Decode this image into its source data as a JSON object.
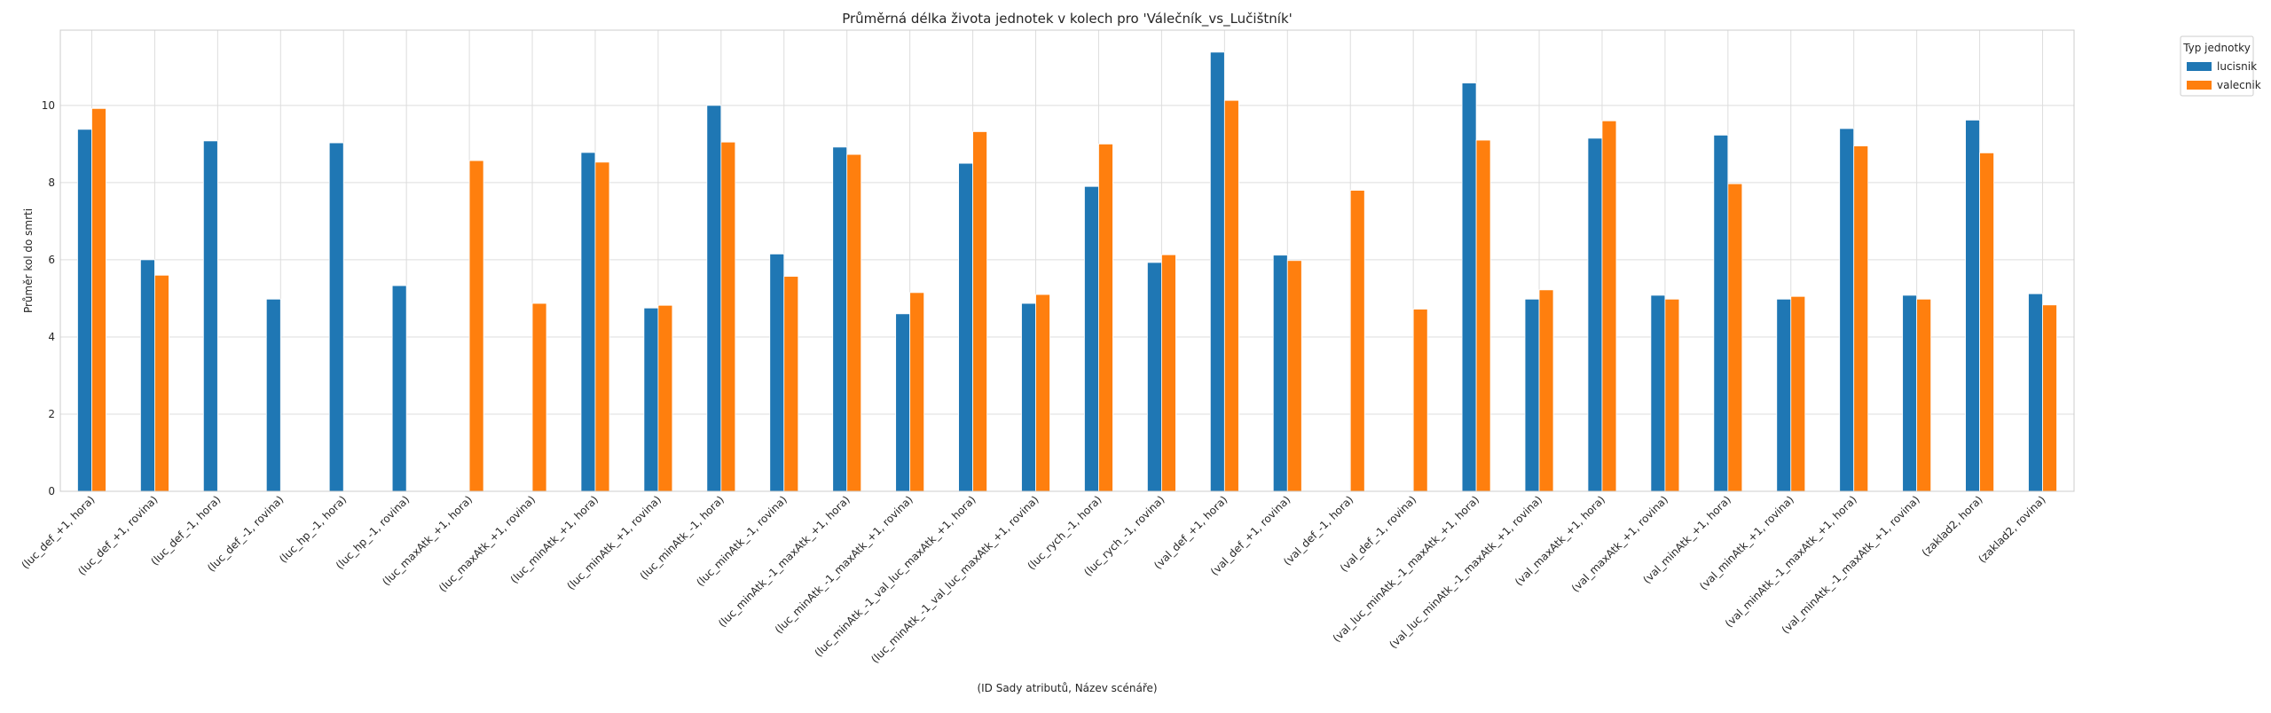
{
  "chart_data": {
    "type": "bar",
    "title": "Průměrná délka života jednotek v kolech pro 'Válečník_vs_Lučištník'",
    "xlabel": "(ID Sady atributů, Název scénáře)",
    "ylabel": "Průměr kol do smrti",
    "ylim": [
      0,
      11.95
    ],
    "yticks": [
      0,
      2,
      4,
      6,
      8,
      10
    ],
    "grid": true,
    "legend_title": "Typ jednotky",
    "legend_position": "outside-top-right",
    "categories": [
      "(luc_def_+1, hora)",
      "(luc_def_+1, rovina)",
      "(luc_def_-1, hora)",
      "(luc_def_-1, rovina)",
      "(luc_hp_-1, hora)",
      "(luc_hp_-1, rovina)",
      "(luc_maxAtk_+1, hora)",
      "(luc_maxAtk_+1, rovina)",
      "(luc_minAtk_+1, hora)",
      "(luc_minAtk_+1, rovina)",
      "(luc_minAtk_-1, hora)",
      "(luc_minAtk_-1, rovina)",
      "(luc_minAtk_-1_maxAtk_+1, hora)",
      "(luc_minAtk_-1_maxAtk_+1, rovina)",
      "(luc_minAtk_-1_val_luc_maxAtk_+1, hora)",
      "(luc_minAtk_-1_val_luc_maxAtk_+1, rovina)",
      "(luc_rych_-1, hora)",
      "(luc_rych_-1, rovina)",
      "(val_def_+1, hora)",
      "(val_def_+1, rovina)",
      "(val_def_-1, hora)",
      "(val_def_-1, rovina)",
      "(val_luc_minAtk_-1_maxAtk_+1, hora)",
      "(val_luc_minAtk_-1_maxAtk_+1, rovina)",
      "(val_maxAtk_+1, hora)",
      "(val_maxAtk_+1, rovina)",
      "(val_minAtk_+1, hora)",
      "(val_minAtk_+1, rovina)",
      "(val_minAtk_-1_maxAtk_+1, hora)",
      "(val_minAtk_-1_maxAtk_+1, rovina)",
      "(zaklad2, hora)",
      "(zaklad2, rovina)"
    ],
    "series": [
      {
        "name": "lucisnik",
        "color": "#1f77b4",
        "values": [
          9.38,
          6.0,
          9.08,
          4.98,
          9.03,
          5.33,
          null,
          null,
          8.78,
          4.75,
          10.0,
          6.15,
          8.92,
          4.6,
          8.5,
          4.87,
          7.9,
          5.93,
          11.38,
          6.12,
          null,
          null,
          10.58,
          4.98,
          9.15,
          5.08,
          9.23,
          4.98,
          9.4,
          5.08,
          9.62,
          5.12
        ]
      },
      {
        "name": "valecnik",
        "color": "#ff7f0e",
        "values": [
          9.92,
          5.6,
          null,
          null,
          null,
          null,
          8.57,
          4.87,
          8.53,
          4.82,
          9.05,
          5.57,
          8.73,
          5.15,
          9.32,
          5.1,
          9.0,
          6.13,
          10.13,
          5.98,
          7.8,
          4.72,
          9.1,
          5.22,
          9.6,
          4.98,
          7.97,
          5.05,
          8.95,
          4.98,
          8.77,
          4.83
        ]
      }
    ]
  }
}
